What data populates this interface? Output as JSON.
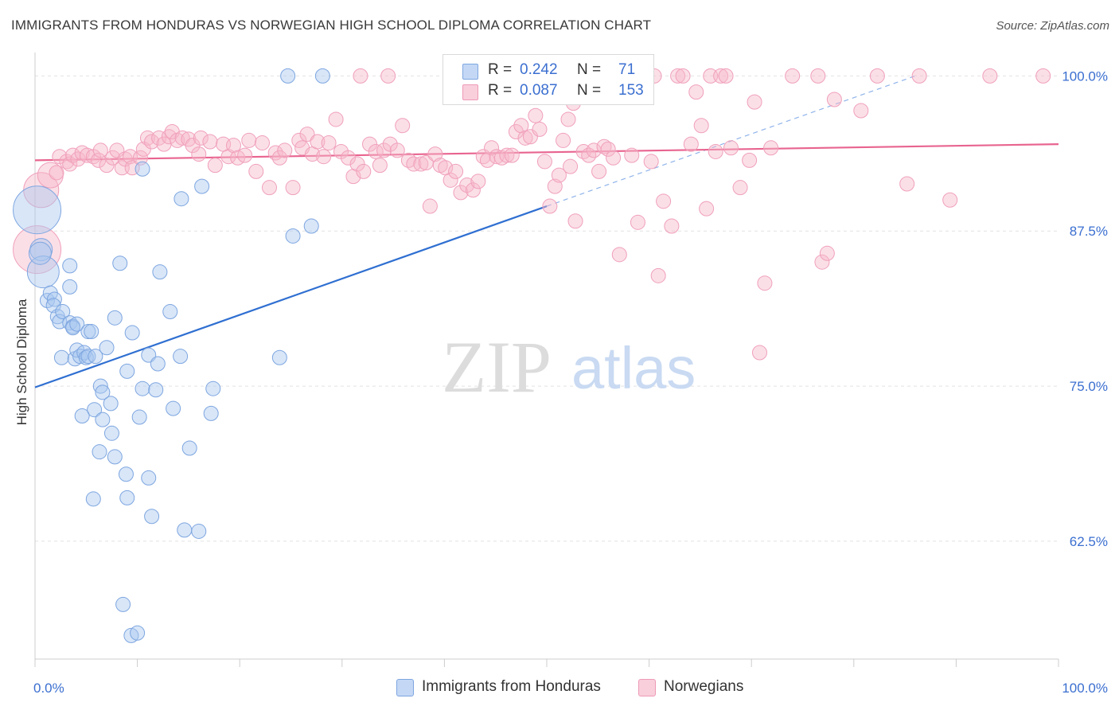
{
  "header": {
    "title": "IMMIGRANTS FROM HONDURAS VS NORWEGIAN HIGH SCHOOL DIPLOMA CORRELATION CHART",
    "source": "Source: ZipAtlas.com"
  },
  "watermark": {
    "zip": "ZIP",
    "atlas": "atlas"
  },
  "legend": {
    "rows": [
      {
        "r_label": "R =",
        "r_value": "0.242",
        "n_label": "N =",
        "n_value": "71",
        "color": "#a9c7f0"
      },
      {
        "r_label": "R =",
        "r_value": "0.087",
        "n_label": "N =",
        "n_value": "153",
        "color": "#f6b7c9"
      }
    ]
  },
  "bottom_legend": {
    "items": [
      {
        "label": "Immigrants from Honduras",
        "color": "#a9c7f0"
      },
      {
        "label": "Norwegians",
        "color": "#f6b7c9"
      }
    ]
  },
  "chart_data": {
    "type": "scatter",
    "title": "IMMIGRANTS FROM HONDURAS VS NORWEGIAN HIGH SCHOOL DIPLOMA CORRELATION CHART",
    "xlabel": "",
    "ylabel": "High School Diploma",
    "xlim": [
      0,
      100
    ],
    "ylim": [
      53,
      101.5
    ],
    "x_tick_labels": [
      "0.0%",
      "100.0%"
    ],
    "y_ticks": [
      62.5,
      75.0,
      87.5,
      100.0
    ],
    "y_tick_labels": [
      "62.5%",
      "75.0%",
      "87.5%",
      "100.0%"
    ],
    "grid": "horizontal dashed",
    "legend_position": "top-center",
    "colors": {
      "blue": "#6fa0e6",
      "blue_line": "#2f6fd1",
      "pink": "#f08cae",
      "pink_line": "#e8648f"
    },
    "series": [
      {
        "name": "Immigrants from Honduras",
        "color": "#a9c7f0",
        "trend": {
          "x1": 0,
          "y1": 74.9,
          "x2": 50,
          "y2": 89.5,
          "dashed_to_x": 86,
          "dashed_to_y": 100.0
        },
        "points": [
          [
            0.2,
            89.2,
            30
          ],
          [
            0.6,
            86.0,
            14
          ],
          [
            0.8,
            84.2,
            20
          ],
          [
            0.5,
            85.7,
            14
          ],
          [
            1.2,
            81.9,
            12
          ],
          [
            1.5,
            82.5,
            12
          ],
          [
            1.9,
            82.0,
            12
          ],
          [
            1.8,
            81.5,
            12
          ],
          [
            2.2,
            80.6,
            12
          ],
          [
            2.4,
            80.2,
            12
          ],
          [
            2.7,
            81.0,
            12
          ],
          [
            3.4,
            83.0,
            12
          ],
          [
            3.4,
            84.7,
            12
          ],
          [
            3.4,
            80.1,
            12
          ],
          [
            3.7,
            79.8,
            12
          ],
          [
            3.7,
            79.7,
            12
          ],
          [
            4.1,
            80.0,
            12
          ],
          [
            5.2,
            79.4,
            12
          ],
          [
            5.5,
            79.4,
            12
          ],
          [
            2.6,
            77.3,
            12
          ],
          [
            3.9,
            77.2,
            12
          ],
          [
            4.1,
            77.9,
            12
          ],
          [
            4.4,
            77.4,
            12
          ],
          [
            4.8,
            77.7,
            12
          ],
          [
            5.0,
            77.3,
            12
          ],
          [
            5.2,
            77.4,
            12
          ],
          [
            5.9,
            77.4,
            12
          ],
          [
            7.0,
            78.1,
            12
          ],
          [
            7.8,
            80.5,
            12
          ],
          [
            8.3,
            84.9,
            12
          ],
          [
            9.5,
            79.3,
            12
          ],
          [
            11.1,
            77.5,
            12
          ],
          [
            12.0,
            76.8,
            12
          ],
          [
            13.2,
            81.0,
            12
          ],
          [
            14.2,
            77.4,
            12
          ],
          [
            14.3,
            90.1,
            12
          ],
          [
            16.3,
            91.1,
            12
          ],
          [
            10.5,
            92.5,
            12
          ],
          [
            12.2,
            84.2,
            12
          ],
          [
            9.0,
            76.2,
            12
          ],
          [
            6.4,
            75.0,
            12
          ],
          [
            6.6,
            74.5,
            12
          ],
          [
            7.4,
            73.6,
            12
          ],
          [
            5.8,
            73.1,
            12
          ],
          [
            4.6,
            72.6,
            12
          ],
          [
            6.6,
            72.3,
            12
          ],
          [
            7.5,
            71.2,
            12
          ],
          [
            10.2,
            72.5,
            12
          ],
          [
            10.5,
            74.8,
            12
          ],
          [
            11.8,
            74.7,
            12
          ],
          [
            13.5,
            73.2,
            12
          ],
          [
            17.4,
            74.8,
            12
          ],
          [
            17.2,
            72.8,
            12
          ],
          [
            15.1,
            70.0,
            12
          ],
          [
            6.3,
            69.7,
            12
          ],
          [
            7.8,
            69.3,
            12
          ],
          [
            8.9,
            67.9,
            12
          ],
          [
            11.1,
            67.6,
            12
          ],
          [
            5.7,
            65.9,
            12
          ],
          [
            9.0,
            66.0,
            12
          ],
          [
            11.4,
            64.5,
            12
          ],
          [
            14.6,
            63.4,
            12
          ],
          [
            16.0,
            63.3,
            12
          ],
          [
            8.6,
            57.4,
            12
          ],
          [
            9.4,
            54.9,
            12
          ],
          [
            10.0,
            55.1,
            12
          ],
          [
            23.9,
            77.3,
            12
          ],
          [
            25.2,
            87.1,
            12
          ],
          [
            27.0,
            87.9,
            12
          ],
          [
            24.7,
            100.0,
            12
          ],
          [
            28.1,
            100.0,
            12
          ]
        ]
      },
      {
        "name": "Norwegians",
        "color": "#f6b7c9",
        "trend": {
          "x1": 0,
          "y1": 93.2,
          "x2": 100,
          "y2": 94.5
        },
        "points": [
          [
            0.2,
            86.0,
            30
          ],
          [
            0.6,
            90.8,
            22
          ],
          [
            1.5,
            92.0,
            16
          ],
          [
            2.1,
            92.2,
            12
          ],
          [
            2.4,
            93.5,
            12
          ],
          [
            3.1,
            93.1,
            12
          ],
          [
            3.4,
            92.9,
            12
          ],
          [
            3.7,
            93.6,
            12
          ],
          [
            4.2,
            93.3,
            12
          ],
          [
            4.6,
            93.8,
            12
          ],
          [
            5.1,
            93.6,
            12
          ],
          [
            5.7,
            93.5,
            12
          ],
          [
            6.2,
            93.2,
            12
          ],
          [
            6.4,
            94.0,
            12
          ],
          [
            7.0,
            92.8,
            12
          ],
          [
            7.6,
            93.4,
            12
          ],
          [
            8.0,
            94.0,
            12
          ],
          [
            8.5,
            92.6,
            12
          ],
          [
            8.8,
            93.3,
            12
          ],
          [
            9.3,
            93.5,
            12
          ],
          [
            9.5,
            92.6,
            12
          ],
          [
            10.3,
            93.4,
            12
          ],
          [
            10.6,
            94.1,
            12
          ],
          [
            11.0,
            95.0,
            12
          ],
          [
            11.4,
            94.7,
            12
          ],
          [
            12.1,
            95.0,
            12
          ],
          [
            12.6,
            94.5,
            12
          ],
          [
            13.1,
            95.1,
            12
          ],
          [
            13.4,
            95.5,
            12
          ],
          [
            13.9,
            94.8,
            12
          ],
          [
            14.4,
            95.0,
            12
          ],
          [
            15.0,
            94.9,
            12
          ],
          [
            15.4,
            94.4,
            12
          ],
          [
            16.0,
            93.7,
            12
          ],
          [
            16.2,
            95.0,
            12
          ],
          [
            17.1,
            94.7,
            12
          ],
          [
            17.6,
            92.8,
            12
          ],
          [
            18.4,
            94.5,
            12
          ],
          [
            18.9,
            93.5,
            12
          ],
          [
            19.4,
            94.4,
            12
          ],
          [
            19.8,
            93.4,
            12
          ],
          [
            20.5,
            93.6,
            12
          ],
          [
            20.9,
            94.8,
            12
          ],
          [
            21.6,
            92.3,
            12
          ],
          [
            22.2,
            94.6,
            12
          ],
          [
            22.9,
            91.0,
            12
          ],
          [
            23.5,
            93.8,
            12
          ],
          [
            23.9,
            93.4,
            12
          ],
          [
            24.4,
            94.0,
            12
          ],
          [
            25.2,
            91.0,
            12
          ],
          [
            25.8,
            94.8,
            12
          ],
          [
            26.1,
            94.2,
            12
          ],
          [
            26.6,
            95.3,
            12
          ],
          [
            27.1,
            93.7,
            12
          ],
          [
            27.6,
            94.7,
            12
          ],
          [
            28.2,
            93.5,
            12
          ],
          [
            28.7,
            94.6,
            12
          ],
          [
            29.4,
            96.5,
            12
          ],
          [
            29.9,
            93.9,
            12
          ],
          [
            30.6,
            93.4,
            12
          ],
          [
            31.1,
            91.9,
            12
          ],
          [
            31.5,
            92.9,
            12
          ],
          [
            32.1,
            92.3,
            12
          ],
          [
            32.7,
            94.5,
            12
          ],
          [
            33.3,
            93.9,
            12
          ],
          [
            33.7,
            92.8,
            12
          ],
          [
            34.1,
            94.0,
            12
          ],
          [
            34.7,
            94.5,
            12
          ],
          [
            35.4,
            94.0,
            12
          ],
          [
            35.9,
            96.0,
            12
          ],
          [
            36.5,
            93.2,
            12
          ],
          [
            37.0,
            92.9,
            12
          ],
          [
            37.7,
            92.9,
            12
          ],
          [
            38.2,
            93.0,
            12
          ],
          [
            38.6,
            89.5,
            12
          ],
          [
            39.1,
            93.7,
            12
          ],
          [
            39.6,
            92.8,
            12
          ],
          [
            40.1,
            92.6,
            12
          ],
          [
            40.6,
            91.6,
            12
          ],
          [
            41.1,
            92.3,
            12
          ],
          [
            41.6,
            90.6,
            12
          ],
          [
            42.2,
            91.2,
            12
          ],
          [
            42.8,
            90.8,
            12
          ],
          [
            43.3,
            91.5,
            12
          ],
          [
            43.8,
            93.5,
            12
          ],
          [
            44.2,
            93.2,
            12
          ],
          [
            44.6,
            94.2,
            12
          ],
          [
            45.1,
            93.5,
            12
          ],
          [
            45.6,
            93.4,
            12
          ],
          [
            46.1,
            93.6,
            12
          ],
          [
            46.6,
            93.6,
            12
          ],
          [
            47.0,
            95.5,
            12
          ],
          [
            47.5,
            96.0,
            12
          ],
          [
            47.9,
            95.0,
            12
          ],
          [
            48.4,
            95.1,
            12
          ],
          [
            48.9,
            96.8,
            12
          ],
          [
            49.3,
            95.7,
            12
          ],
          [
            49.8,
            93.1,
            12
          ],
          [
            50.3,
            89.5,
            12
          ],
          [
            50.8,
            91.1,
            12
          ],
          [
            51.2,
            92.0,
            12
          ],
          [
            51.6,
            94.8,
            12
          ],
          [
            52.1,
            96.5,
            12
          ],
          [
            52.6,
            97.8,
            12
          ],
          [
            52.3,
            92.7,
            12
          ],
          [
            52.8,
            88.3,
            12
          ],
          [
            53.6,
            93.9,
            12
          ],
          [
            54.1,
            93.6,
            12
          ],
          [
            54.6,
            94.0,
            12
          ],
          [
            55.1,
            92.3,
            12
          ],
          [
            55.6,
            94.3,
            12
          ],
          [
            56.0,
            94.1,
            12
          ],
          [
            56.5,
            93.4,
            12
          ],
          [
            57.1,
            85.6,
            12
          ],
          [
            58.3,
            93.6,
            12
          ],
          [
            58.9,
            88.2,
            12
          ],
          [
            60.2,
            93.1,
            12
          ],
          [
            60.9,
            83.9,
            12
          ],
          [
            61.4,
            89.9,
            12
          ],
          [
            62.2,
            87.9,
            12
          ],
          [
            62.8,
            100.0,
            12
          ],
          [
            63.3,
            100.0,
            12
          ],
          [
            64.1,
            94.5,
            12
          ],
          [
            64.6,
            98.7,
            12
          ],
          [
            65.1,
            96.0,
            12
          ],
          [
            65.6,
            89.3,
            12
          ],
          [
            66.0,
            100.0,
            12
          ],
          [
            66.5,
            93.9,
            12
          ],
          [
            67.0,
            100.0,
            12
          ],
          [
            67.5,
            100.0,
            12
          ],
          [
            68.0,
            94.2,
            12
          ],
          [
            68.9,
            91.0,
            12
          ],
          [
            69.8,
            93.2,
            12
          ],
          [
            70.3,
            97.9,
            12
          ],
          [
            70.8,
            77.7,
            12
          ],
          [
            71.3,
            83.3,
            12
          ],
          [
            71.9,
            94.2,
            12
          ],
          [
            74.0,
            100.0,
            12
          ],
          [
            76.5,
            100.0,
            12
          ],
          [
            76.9,
            85.0,
            12
          ],
          [
            77.4,
            85.7,
            12
          ],
          [
            78.1,
            98.1,
            12
          ],
          [
            80.7,
            97.2,
            12
          ],
          [
            82.3,
            100.0,
            12
          ],
          [
            85.2,
            91.3,
            12
          ],
          [
            86.4,
            100.0,
            12
          ],
          [
            89.4,
            90.0,
            12
          ],
          [
            93.3,
            100.0,
            12
          ],
          [
            98.5,
            100.0,
            12
          ],
          [
            31.8,
            100.0,
            12
          ],
          [
            34.5,
            100.0,
            12
          ],
          [
            60.5,
            100.0,
            12
          ]
        ]
      }
    ]
  }
}
